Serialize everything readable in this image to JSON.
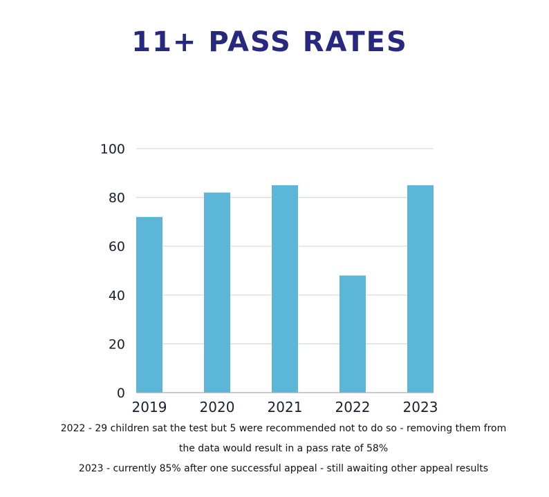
{
  "chart_data": {
    "type": "bar",
    "title": "11+ PASS RATES",
    "xlabel": "",
    "ylabel": "",
    "categories": [
      "2019",
      "2020",
      "2021",
      "2022",
      "2023"
    ],
    "values": [
      72,
      82,
      85,
      48,
      85
    ],
    "ylim": [
      0,
      100
    ],
    "yticks": [
      "0",
      "20",
      "40",
      "60",
      "80",
      "100"
    ],
    "grid": true,
    "legend": "none",
    "bar_color": "#5bb6d7",
    "title_color": "#27297f",
    "annotations": [
      "2022 - 29 children sat the test but 5 were recommended not to do so - removing them from",
      "the data would result in a pass rate of 58%",
      "2023 - currently 85% after one successful appeal - still awaiting other appeal results"
    ]
  }
}
